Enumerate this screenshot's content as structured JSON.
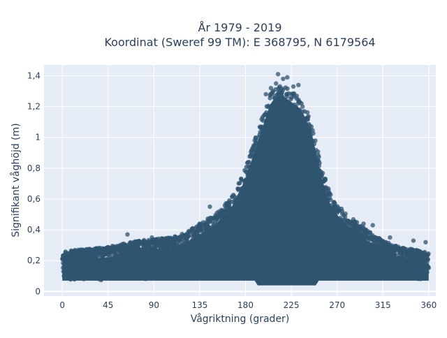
{
  "chart_data": {
    "type": "scatter",
    "title_line1": "År 1979 - 2019",
    "title_line2": "Koordinat (Sweref 99 TM): E 368795, N 6179564",
    "xlabel": "Vågriktning (grader)",
    "ylabel": "Signifikant våghöjd (m)",
    "xlim": [
      -18,
      367
    ],
    "ylim": [
      -0.03,
      1.47
    ],
    "x_ticks": [
      0,
      45,
      90,
      135,
      180,
      225,
      270,
      315,
      360
    ],
    "y_ticks": [
      0,
      0.2,
      0.4,
      0.6,
      0.8,
      1,
      1.2,
      1.4
    ],
    "y_tick_labels": [
      "0",
      "0,2",
      "0,4",
      "0,6",
      "0,8",
      "1",
      "1,2",
      "1,4"
    ],
    "grid": true,
    "marker_color": "#2f5470",
    "background_color": "#e5ecf6",
    "series": [
      {
        "points_note_free": true,
        "upper_envelope": [
          [
            0,
            0.26
          ],
          [
            15,
            0.27
          ],
          [
            30,
            0.28
          ],
          [
            45,
            0.29
          ],
          [
            60,
            0.31
          ],
          [
            75,
            0.33
          ],
          [
            90,
            0.34
          ],
          [
            105,
            0.35
          ],
          [
            120,
            0.38
          ],
          [
            135,
            0.44
          ],
          [
            150,
            0.5
          ],
          [
            165,
            0.6
          ],
          [
            180,
            0.8
          ],
          [
            195,
            1.1
          ],
          [
            205,
            1.3
          ],
          [
            215,
            1.35
          ],
          [
            225,
            1.3
          ],
          [
            235,
            1.25
          ],
          [
            245,
            1.1
          ],
          [
            255,
            0.8
          ],
          [
            265,
            0.6
          ],
          [
            280,
            0.5
          ],
          [
            295,
            0.42
          ],
          [
            310,
            0.35
          ],
          [
            325,
            0.3
          ],
          [
            340,
            0.28
          ],
          [
            355,
            0.26
          ],
          [
            360,
            0.25
          ]
        ],
        "outliers": [
          [
            212,
            1.41
          ],
          [
            217,
            1.38
          ],
          [
            221,
            1.39
          ],
          [
            227,
            1.33
          ],
          [
            205,
            1.32
          ],
          [
            232,
            1.34
          ],
          [
            200,
            1.28
          ],
          [
            210,
            1.35
          ],
          [
            64,
            0.37
          ],
          [
            88,
            0.35
          ],
          [
            135,
            0.44
          ],
          [
            145,
            0.55
          ],
          [
            305,
            0.43
          ],
          [
            322,
            0.35
          ],
          [
            357,
            0.32
          ],
          [
            345,
            0.33
          ],
          [
            296,
            0.44
          ]
        ]
      }
    ]
  }
}
